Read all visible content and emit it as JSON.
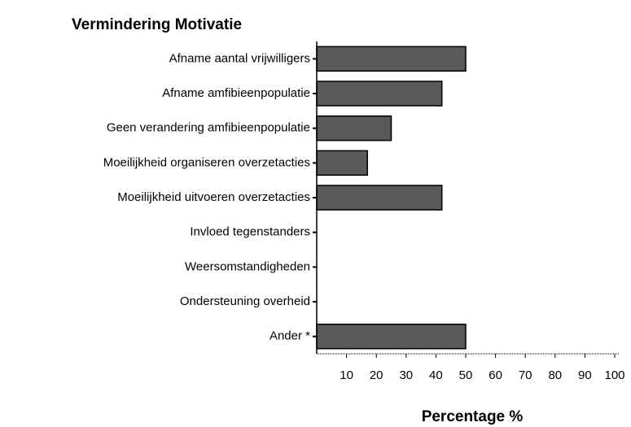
{
  "chart_data": {
    "type": "bar",
    "orientation": "horizontal",
    "title": "Vermindering Motivatie",
    "x_label": "Percentage %",
    "categories": [
      "Afname aantal vrijwilligers",
      "Afname amfibieenpopulatie",
      "Geen verandering amfibieenpopulatie",
      "Moeilijkheid organiseren overzetacties",
      "Moeilijkheid uitvoeren overzetacties",
      "Invloed tegenstanders",
      "Weersomstandigheden",
      "Ondersteuning overheid",
      "Ander *"
    ],
    "values": [
      50,
      42,
      25,
      17,
      42,
      0,
      0,
      0,
      50
    ],
    "color": "#595959",
    "xlim": [
      0,
      100
    ],
    "xticks": [
      10,
      20,
      30,
      40,
      50,
      60,
      70,
      80,
      90,
      100
    ],
    "grid": false
  }
}
